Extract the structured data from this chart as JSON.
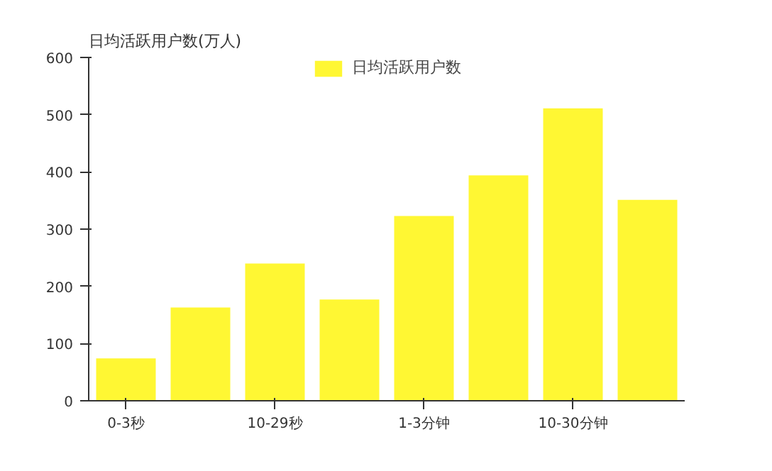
{
  "chart_data": {
    "type": "bar",
    "ylabel": "日均活跃用户数(万人)",
    "categories": [
      "0-3秒",
      null,
      "10-29秒",
      null,
      "1-3分钟",
      null,
      "10-30分钟",
      null
    ],
    "series": [
      {
        "name": "日均活跃用户数",
        "color": "#fff733",
        "values": [
          74,
          163,
          240,
          177,
          323,
          394,
          511,
          351
        ]
      }
    ],
    "ylim": [
      0,
      600
    ],
    "yticks": [
      0,
      100,
      200,
      300,
      400,
      500,
      600
    ],
    "grid": false,
    "legend": "top"
  }
}
